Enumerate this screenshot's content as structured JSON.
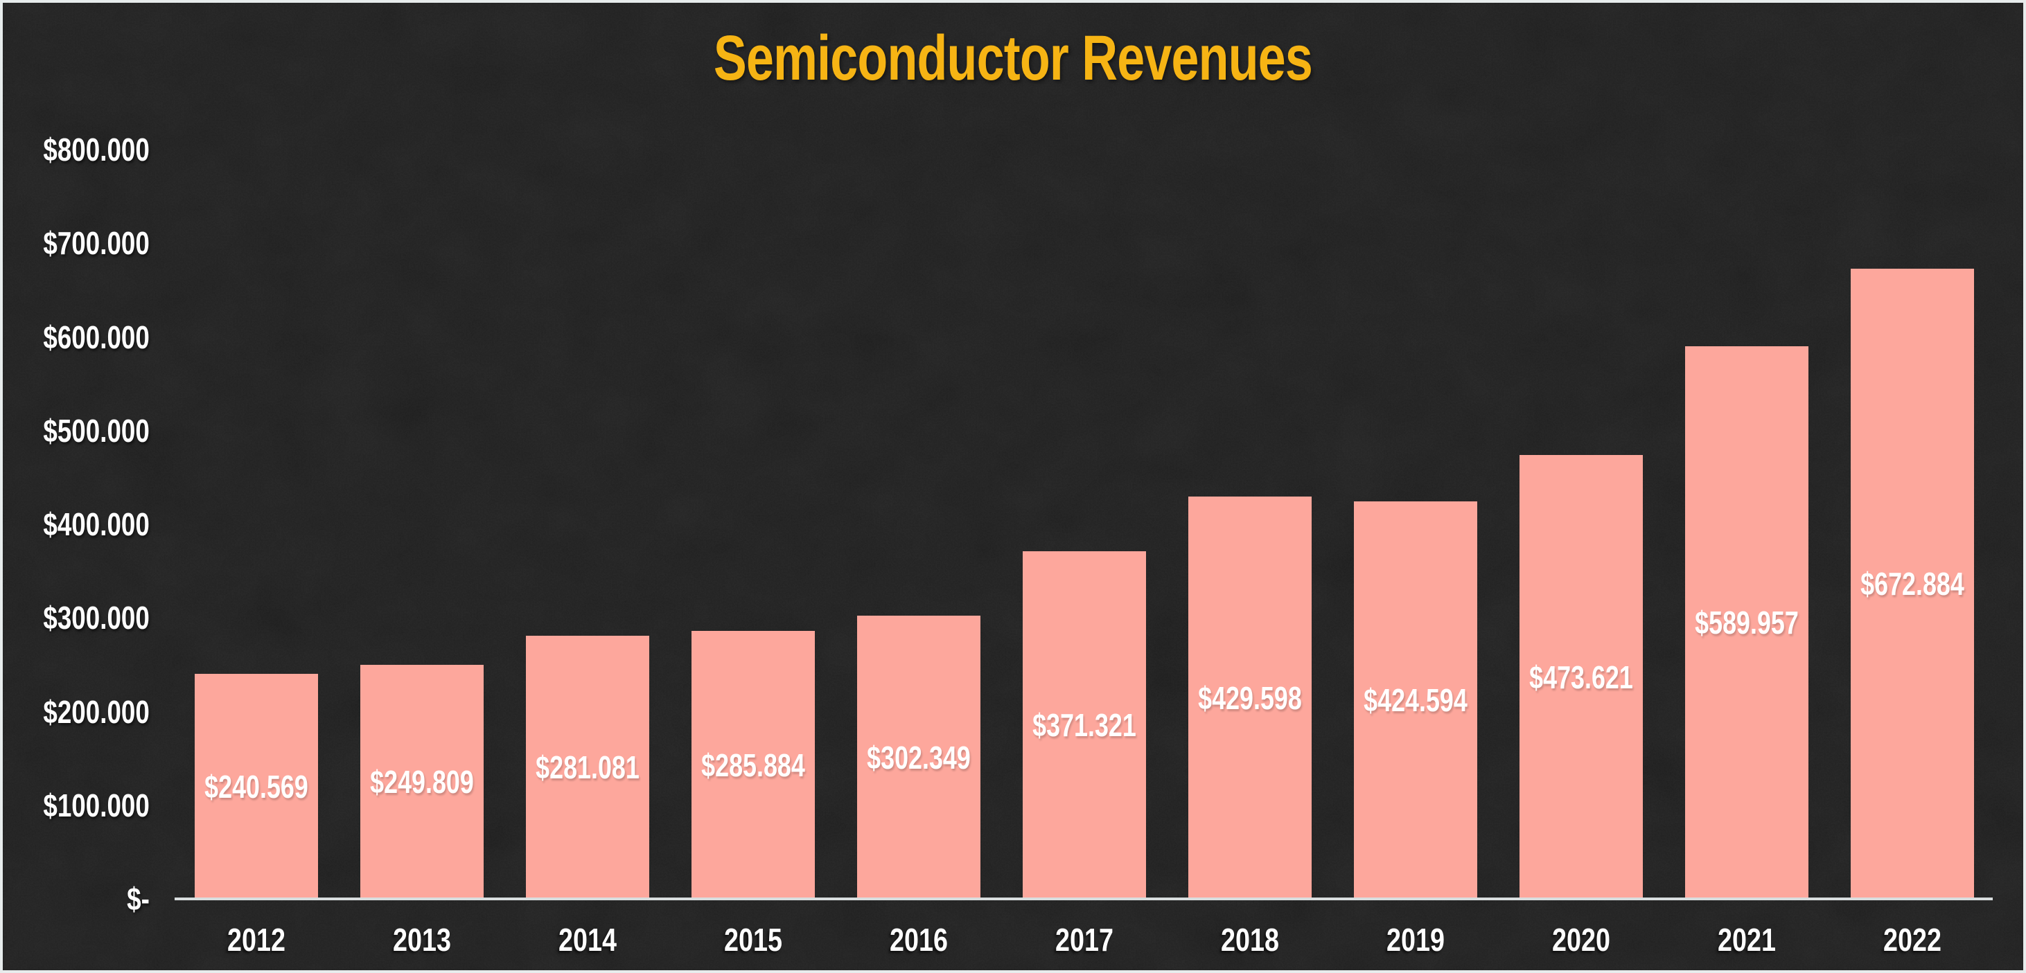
{
  "colors": {
    "background": "#242424",
    "frame_border": "#e7ecec",
    "bar": "#fda79c",
    "title": "#f6b414",
    "label_text": "#ffffff",
    "axis_line": "#d9dedf"
  },
  "chart_data": {
    "type": "bar",
    "title": "Semiconductor Revenues",
    "xlabel": "",
    "ylabel": "",
    "categories": [
      "2012",
      "2013",
      "2014",
      "2015",
      "2016",
      "2017",
      "2018",
      "2019",
      "2020",
      "2021",
      "2022"
    ],
    "values": [
      240569,
      249809,
      281081,
      285884,
      302349,
      371321,
      429598,
      424594,
      473621,
      589957,
      672884
    ],
    "bar_labels": [
      "$240.569",
      "$249.809",
      "$281.081",
      "$285.884",
      "$302.349",
      "$371.321",
      "$429.598",
      "$424.594",
      "$473.621",
      "$589.957",
      "$672.884"
    ],
    "y_ticks": [
      "$800.000",
      "$700.000",
      "$600.000",
      "$500.000",
      "$400.000",
      "$300.000",
      "$200.000",
      "$100.000",
      "$-"
    ],
    "ylim": [
      0,
      800000
    ],
    "grid": false,
    "legend_position": "none",
    "value_label_position": "centered-inside-bar"
  }
}
